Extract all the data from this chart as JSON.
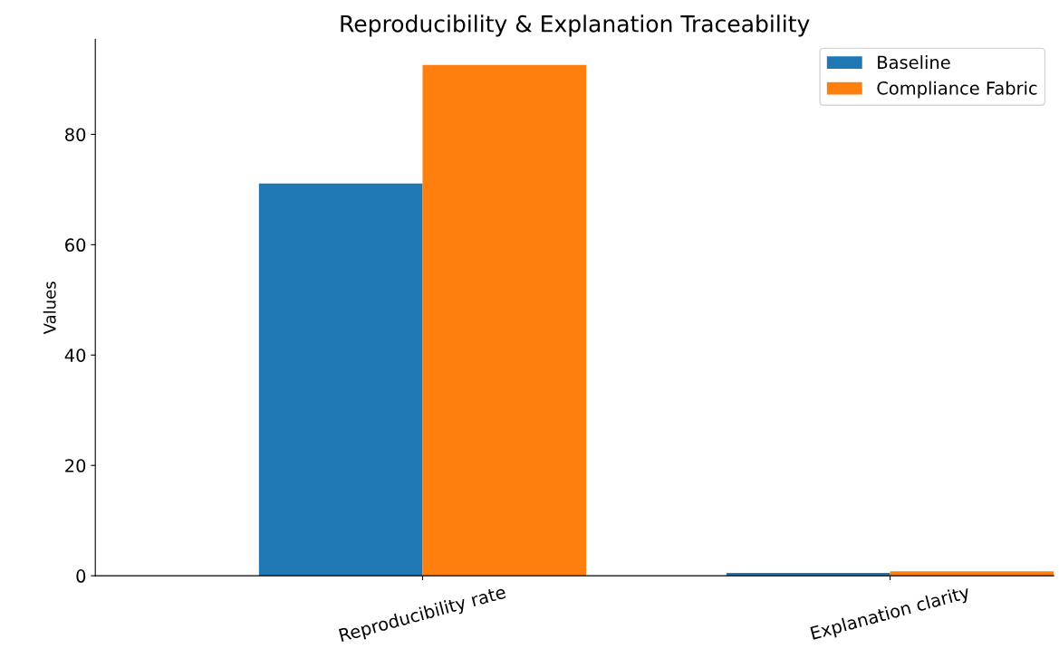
{
  "chart_data": {
    "type": "bar",
    "title": "Reproducibility & Explanation Traceability",
    "ylabel": "Values",
    "categories": [
      "Reproducibility rate",
      "Explanation clarity"
    ],
    "series": [
      {
        "name": "Baseline",
        "color": "#1f77b4",
        "values": [
          71.1,
          0.5
        ]
      },
      {
        "name": "Compliance Fabric",
        "color": "#ff7f0e",
        "values": [
          92.6,
          0.8
        ]
      }
    ],
    "ylim": [
      0,
      97.2
    ],
    "yticks": [
      0,
      20,
      40,
      60,
      80
    ],
    "grid": false,
    "legend": "top right"
  }
}
